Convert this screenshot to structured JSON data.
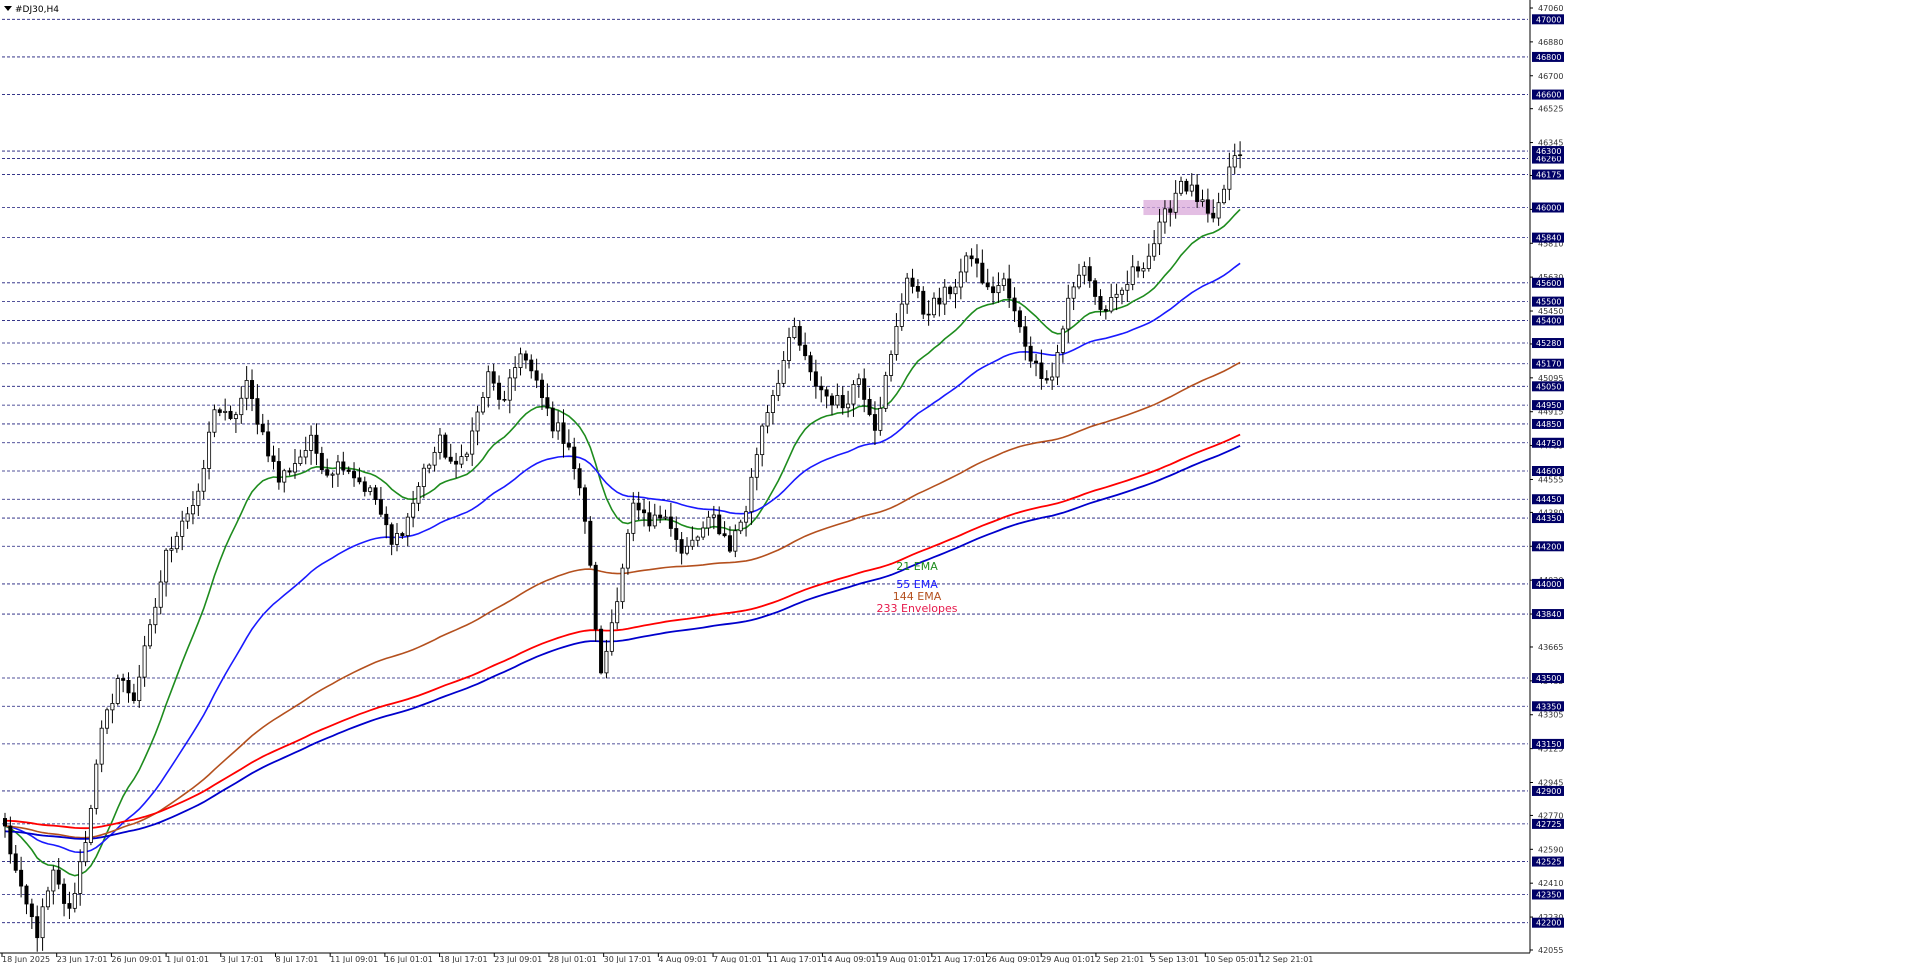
{
  "window": {
    "title": "#DJ30,H4",
    "menu_icon": "triangle-down-icon"
  },
  "chart_data": {
    "type": "candlestick",
    "symbol": "#DJ30",
    "timeframe": "H4",
    "ylim": [
      42055,
      47060
    ],
    "y_tick_labels": [
      42055,
      42230,
      42410,
      42590,
      42770,
      42945,
      43125,
      43305,
      43485,
      43665,
      43840,
      44020,
      44200,
      44380,
      44555,
      44735,
      44915,
      45095,
      45275,
      45450,
      45630,
      45810,
      45990,
      46170,
      46345,
      46525,
      46700,
      46880,
      47060
    ],
    "levels": [
      42200,
      42350,
      42525,
      42725,
      42900,
      43150,
      43350,
      43500,
      43840,
      44000,
      44200,
      44350,
      44450,
      44600,
      44750,
      44850,
      44950,
      45050,
      45170,
      45280,
      45400,
      45500,
      45600,
      45840,
      46000,
      46175,
      46260,
      46300,
      46600,
      46800,
      47000
    ],
    "x_tick_labels": [
      "18 Jun 2025",
      "23 Jun 17:01",
      "26 Jun 09:01",
      "1 Jul 01:01",
      "3 Jul 17:01",
      "8 Jul 17:01",
      "11 Jul 09:01",
      "16 Jul 01:01",
      "18 Jul 17:01",
      "23 Jul 09:01",
      "28 Jul 01:01",
      "30 Jul 17:01",
      "4 Aug 09:01",
      "7 Aug 01:01",
      "11 Aug 17:01",
      "14 Aug 09:01",
      "19 Aug 01:01",
      "21 Aug 17:01",
      "26 Aug 09:01",
      "29 Aug 01:01",
      "2 Sep 21:01",
      "5 Sep 13:01",
      "10 Sep 05:01",
      "12 Sep 21:01"
    ],
    "price_path": [
      [
        0,
        42700
      ],
      [
        3,
        42350
      ],
      [
        6,
        42150
      ],
      [
        9,
        42450
      ],
      [
        12,
        42250
      ],
      [
        15,
        42650
      ],
      [
        18,
        43200
      ],
      [
        21,
        43500
      ],
      [
        24,
        43400
      ],
      [
        27,
        43750
      ],
      [
        30,
        44150
      ],
      [
        33,
        44350
      ],
      [
        36,
        44450
      ],
      [
        39,
        44950
      ],
      [
        42,
        44850
      ],
      [
        45,
        45050
      ],
      [
        48,
        44800
      ],
      [
        51,
        44550
      ],
      [
        54,
        44650
      ],
      [
        57,
        44750
      ],
      [
        60,
        44600
      ],
      [
        63,
        44650
      ],
      [
        66,
        44550
      ],
      [
        69,
        44450
      ],
      [
        72,
        44200
      ],
      [
        75,
        44350
      ],
      [
        78,
        44600
      ],
      [
        81,
        44750
      ],
      [
        84,
        44600
      ],
      [
        87,
        44800
      ],
      [
        90,
        45100
      ],
      [
        93,
        44950
      ],
      [
        96,
        45250
      ],
      [
        99,
        45050
      ],
      [
        102,
        44850
      ],
      [
        105,
        44750
      ],
      [
        108,
        44350
      ],
      [
        111,
        43500
      ],
      [
        114,
        43950
      ],
      [
        117,
        44400
      ],
      [
        120,
        44300
      ],
      [
        123,
        44400
      ],
      [
        126,
        44150
      ],
      [
        129,
        44250
      ],
      [
        132,
        44350
      ],
      [
        135,
        44200
      ],
      [
        138,
        44400
      ],
      [
        141,
        44850
      ],
      [
        144,
        45100
      ],
      [
        147,
        45350
      ],
      [
        150,
        45100
      ],
      [
        153,
        45000
      ],
      [
        156,
        44950
      ],
      [
        159,
        45100
      ],
      [
        162,
        44850
      ],
      [
        165,
        45200
      ],
      [
        168,
        45650
      ],
      [
        171,
        45450
      ],
      [
        174,
        45500
      ],
      [
        177,
        45600
      ],
      [
        180,
        45750
      ],
      [
        183,
        45550
      ],
      [
        186,
        45600
      ],
      [
        189,
        45350
      ],
      [
        192,
        45150
      ],
      [
        195,
        45100
      ],
      [
        198,
        45500
      ],
      [
        201,
        45700
      ],
      [
        204,
        45450
      ],
      [
        207,
        45500
      ],
      [
        210,
        45650
      ],
      [
        213,
        45750
      ],
      [
        216,
        45950
      ],
      [
        219,
        46150
      ],
      [
        222,
        46050
      ],
      [
        225,
        45900
      ],
      [
        228,
        46200
      ],
      [
        230,
        46280
      ]
    ],
    "last_index": 230,
    "highlight_zone": {
      "bar_from": 212,
      "bar_to": 225,
      "price_low": 45960,
      "price_high": 46040,
      "color": "#d9a8d9"
    },
    "series": [
      {
        "name": "21 EMA",
        "color": "#1e8c1e",
        "type": "ema",
        "period": 21
      },
      {
        "name": "55 EMA",
        "color": "#1a1aff",
        "type": "ema",
        "period": 55
      },
      {
        "name": "144 EMA",
        "color": "#b4501e",
        "type": "ema",
        "period": 144
      },
      {
        "name": "233 Envelopes",
        "color": "#e6194b",
        "type": "envelope",
        "period": 233,
        "upper_color": "#ff0000",
        "lower_color": "#0000cc"
      }
    ],
    "colors": {
      "candle": "#000000",
      "level_line": "#1a1a7a",
      "axis_text": "#333333",
      "price_label_bg": "#000066",
      "price_label_text": "#ffffff"
    }
  }
}
